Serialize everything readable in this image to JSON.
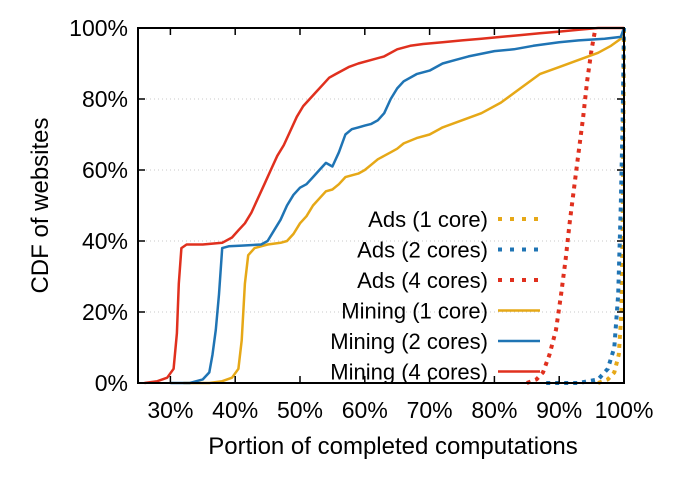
{
  "chart_data": {
    "type": "line",
    "title": "",
    "xlabel": "Portion of completed computations",
    "ylabel": "CDF of websites",
    "xlim": [
      25,
      100
    ],
    "ylim": [
      0,
      100
    ],
    "x_ticks": [
      30,
      40,
      50,
      60,
      70,
      80,
      90,
      100
    ],
    "x_tick_labels": [
      "30%",
      "40%",
      "50%",
      "60%",
      "70%",
      "80%",
      "90%",
      "100%"
    ],
    "y_ticks": [
      0,
      20,
      40,
      60,
      80,
      100
    ],
    "y_tick_labels": [
      "0%",
      "20%",
      "40%",
      "60%",
      "80%",
      "100%"
    ],
    "grid": "horizontal dotted",
    "legend_position": "bottom-right",
    "series": [
      {
        "name": "Ads (1 core)",
        "color": "#e6a817",
        "style": "dotted",
        "points": [
          [
            96,
            0
          ],
          [
            97.5,
            1
          ],
          [
            98.5,
            3
          ],
          [
            99.2,
            8
          ],
          [
            99.6,
            20
          ],
          [
            99.8,
            45
          ],
          [
            99.9,
            75
          ],
          [
            100,
            100
          ]
        ]
      },
      {
        "name": "Ads (2 cores)",
        "color": "#1f74b4",
        "style": "dotted",
        "points": [
          [
            88,
            0
          ],
          [
            93,
            0
          ],
          [
            96,
            1
          ],
          [
            97.5,
            4
          ],
          [
            98.5,
            10
          ],
          [
            99.1,
            25
          ],
          [
            99.5,
            50
          ],
          [
            99.8,
            75
          ],
          [
            100,
            100
          ]
        ]
      },
      {
        "name": "Ads (4 cores)",
        "color": "#e0301e",
        "style": "dotted",
        "points": [
          [
            85,
            0
          ],
          [
            86.5,
            1
          ],
          [
            87.5,
            3
          ],
          [
            88.5,
            8
          ],
          [
            89.5,
            15
          ],
          [
            90.3,
            25
          ],
          [
            91,
            35
          ],
          [
            91.6,
            45
          ],
          [
            92.3,
            55
          ],
          [
            93,
            65
          ],
          [
            93.7,
            75
          ],
          [
            94.3,
            85
          ],
          [
            95,
            94
          ],
          [
            95.6,
            100
          ]
        ]
      },
      {
        "name": "Mining (1 core)",
        "color": "#e6a817",
        "style": "solid",
        "points": [
          [
            32,
            0
          ],
          [
            36,
            0
          ],
          [
            38,
            0.5
          ],
          [
            39.5,
            1.5
          ],
          [
            40.5,
            4
          ],
          [
            41,
            12
          ],
          [
            41.5,
            28
          ],
          [
            42,
            36
          ],
          [
            43,
            38
          ],
          [
            45,
            39
          ],
          [
            47,
            39.5
          ],
          [
            48,
            40
          ],
          [
            49,
            42
          ],
          [
            50,
            45
          ],
          [
            51,
            47
          ],
          [
            52,
            50
          ],
          [
            53,
            52
          ],
          [
            54,
            54
          ],
          [
            55,
            54.5
          ],
          [
            56,
            56
          ],
          [
            57,
            58
          ],
          [
            58,
            58.5
          ],
          [
            59,
            59
          ],
          [
            60,
            60
          ],
          [
            61,
            61.5
          ],
          [
            62,
            63
          ],
          [
            63,
            64
          ],
          [
            64,
            65
          ],
          [
            65,
            66
          ],
          [
            66,
            67.5
          ],
          [
            68,
            69
          ],
          [
            70,
            70
          ],
          [
            72,
            72
          ],
          [
            75,
            74
          ],
          [
            78,
            76
          ],
          [
            81,
            79
          ],
          [
            84,
            83
          ],
          [
            87,
            87
          ],
          [
            90,
            89
          ],
          [
            93,
            91
          ],
          [
            96,
            93
          ],
          [
            98,
            95
          ],
          [
            99.5,
            97
          ],
          [
            100,
            100
          ]
        ]
      },
      {
        "name": "Mining (2 cores)",
        "color": "#1f74b4",
        "style": "solid",
        "points": [
          [
            30,
            0
          ],
          [
            33,
            0
          ],
          [
            35,
            1
          ],
          [
            36,
            3
          ],
          [
            36.5,
            8
          ],
          [
            37,
            15
          ],
          [
            37.5,
            25
          ],
          [
            38,
            38
          ],
          [
            39,
            38.5
          ],
          [
            41,
            38.7
          ],
          [
            44,
            39
          ],
          [
            45,
            40
          ],
          [
            46,
            43
          ],
          [
            47,
            46
          ],
          [
            48,
            50
          ],
          [
            49,
            53
          ],
          [
            50,
            55
          ],
          [
            51,
            56
          ],
          [
            52,
            58
          ],
          [
            53,
            60
          ],
          [
            54,
            62
          ],
          [
            55,
            61
          ],
          [
            56,
            65
          ],
          [
            57,
            70
          ],
          [
            58,
            71.5
          ],
          [
            59,
            72
          ],
          [
            60,
            72.5
          ],
          [
            61,
            73
          ],
          [
            62,
            74
          ],
          [
            63,
            76
          ],
          [
            64,
            80
          ],
          [
            65,
            83
          ],
          [
            66,
            85
          ],
          [
            68,
            87
          ],
          [
            70,
            88
          ],
          [
            72,
            90
          ],
          [
            74,
            91
          ],
          [
            76,
            92
          ],
          [
            80,
            93.5
          ],
          [
            83,
            94
          ],
          [
            86,
            95
          ],
          [
            90,
            96
          ],
          [
            93,
            96.5
          ],
          [
            97,
            97
          ],
          [
            99.5,
            97.5
          ],
          [
            100,
            100
          ]
        ]
      },
      {
        "name": "Mining (4 cores)",
        "color": "#e0301e",
        "style": "solid",
        "points": [
          [
            26,
            0
          ],
          [
            28,
            0.5
          ],
          [
            29.5,
            1.5
          ],
          [
            30.5,
            4
          ],
          [
            31,
            14
          ],
          [
            31.3,
            28
          ],
          [
            31.7,
            38
          ],
          [
            32.5,
            39
          ],
          [
            35,
            39
          ],
          [
            38,
            39.5
          ],
          [
            39.5,
            41
          ],
          [
            40.5,
            43
          ],
          [
            41.5,
            45
          ],
          [
            42.5,
            48
          ],
          [
            43.5,
            52
          ],
          [
            44.5,
            56
          ],
          [
            45.5,
            60
          ],
          [
            46.5,
            64
          ],
          [
            47.5,
            67
          ],
          [
            48.5,
            71
          ],
          [
            49.5,
            75
          ],
          [
            50.5,
            78
          ],
          [
            51.5,
            80
          ],
          [
            52.5,
            82
          ],
          [
            53.5,
            84
          ],
          [
            54.5,
            86
          ],
          [
            55.5,
            87
          ],
          [
            56.5,
            88
          ],
          [
            57.5,
            89
          ],
          [
            59,
            90
          ],
          [
            61,
            91
          ],
          [
            63,
            92
          ],
          [
            65,
            94
          ],
          [
            67,
            95
          ],
          [
            69,
            95.5
          ],
          [
            72,
            96
          ],
          [
            75,
            96.5
          ],
          [
            78,
            97
          ],
          [
            81,
            97.5
          ],
          [
            84,
            98
          ],
          [
            87,
            98.5
          ],
          [
            90,
            99
          ],
          [
            93,
            99.5
          ],
          [
            96,
            100
          ],
          [
            100,
            100
          ]
        ]
      }
    ]
  }
}
